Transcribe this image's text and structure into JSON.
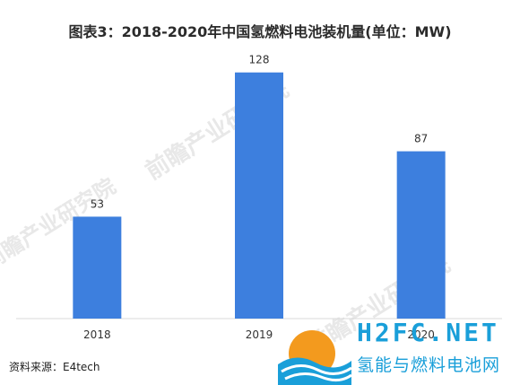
{
  "title": "图表3：2018-2020年中国氢燃料电池装机量(单位：MW)",
  "source": "资料来源：E4tech",
  "watermarks": [
    "前瞻产业研究院",
    "前瞻产业研究院",
    "前瞻产业研究院"
  ],
  "logo": {
    "english": "H2FC.NET",
    "chinese": "氢能与燃料电池网",
    "colors": {
      "orange": "#f39a1e",
      "blue": "#1a9fd9"
    }
  },
  "colors": {
    "bar": "#3d7fde",
    "axis": "#d9d9d9",
    "label": "#333333"
  },
  "chart_data": {
    "type": "bar",
    "categories": [
      "2018",
      "2019",
      "2020"
    ],
    "values": [
      53,
      128,
      87
    ],
    "title": "图表3：2018-2020年中国氢燃料电池装机量(单位：MW)",
    "xlabel": "",
    "ylabel": "",
    "ylim": [
      0,
      140
    ],
    "grid": false,
    "data_labels": true
  }
}
